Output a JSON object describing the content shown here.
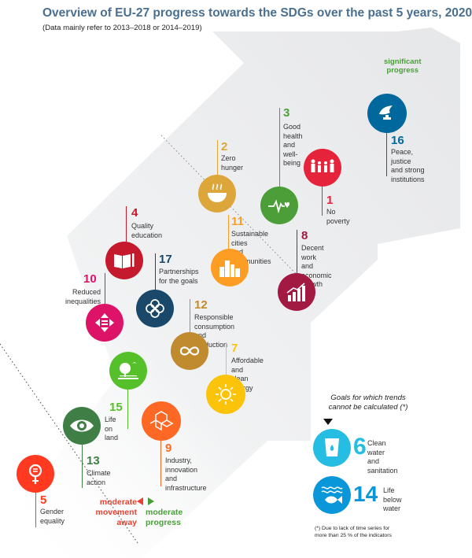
{
  "title": "Overview of EU-27 progress towards the SDGs over the past 5 years, 2020",
  "subtitle": "(Data mainly refer to 2013–2018 or 2014–2019)",
  "scale_labels": {
    "significant_progress": "significant\nprogress",
    "moderate_movement_away": "moderate\nmovement\naway",
    "moderate_progress": "moderate\nprogress"
  },
  "not_calculated": {
    "title": "Goals for which trends\ncannot be calculated  (*)",
    "footnote": "(*)  Due to lack of time series for\nmore than 25 % of the indicators"
  },
  "goals": {
    "g1": {
      "number": "1",
      "label": "No poverty",
      "color": "#e5243b",
      "icon": "people-family-icon"
    },
    "g2": {
      "number": "2",
      "label": "Zero\nhunger",
      "color": "#dda63a",
      "icon": "food-bowl-icon"
    },
    "g3": {
      "number": "3",
      "label": "Good health\nand well-being",
      "color": "#4c9f38",
      "icon": "heartbeat-icon"
    },
    "g4": {
      "number": "4",
      "label": "Quality\neducation",
      "color": "#c5192d",
      "icon": "book-pencil-icon"
    },
    "g5": {
      "number": "5",
      "label": "Gender\nequality",
      "color": "#ff3a21",
      "icon": "gender-equality-icon"
    },
    "g6": {
      "number": "6",
      "label": "Clean water\nand sanitation",
      "color": "#26bde2",
      "icon": "water-glass-icon"
    },
    "g7": {
      "number": "7",
      "label": "Affordable and\nclean energy",
      "color": "#fcc30b",
      "icon": "sun-power-icon"
    },
    "g8": {
      "number": "8",
      "label": "Decent work\nand economic\ngrowth",
      "color": "#a21942",
      "icon": "growth-chart-icon"
    },
    "g9": {
      "number": "9",
      "label": "Industry,\ninnovation and\ninfrastructure",
      "color": "#fd6925",
      "icon": "cubes-icon"
    },
    "g10": {
      "number": "10",
      "label": "Reduced\ninequalities",
      "color": "#dd1367",
      "icon": "equality-arrows-icon"
    },
    "g11": {
      "number": "11",
      "label": "Sustainable cities\nand communities",
      "color": "#fd9d24",
      "icon": "city-buildings-icon"
    },
    "g12": {
      "number": "12",
      "label": "Responsible consumption\nand production",
      "color": "#bf8b2e",
      "icon": "infinity-loop-icon"
    },
    "g13": {
      "number": "13",
      "label": "Climate\naction",
      "color": "#3f7e44",
      "icon": "eye-globe-icon"
    },
    "g14": {
      "number": "14",
      "label": "Life below\nwater",
      "color": "#0a97d9",
      "icon": "fish-waves-icon"
    },
    "g15": {
      "number": "15",
      "label": "Life on\nland",
      "color": "#56c02b",
      "icon": "tree-bird-icon"
    },
    "g16": {
      "number": "16",
      "label": "Peace, justice\nand strong\ninstitutions",
      "color": "#00689d",
      "icon": "dove-gavel-icon"
    },
    "g17": {
      "number": "17",
      "label": "Partnerships\nfor the goals",
      "color": "#19486a",
      "icon": "partnership-flower-icon"
    }
  }
}
